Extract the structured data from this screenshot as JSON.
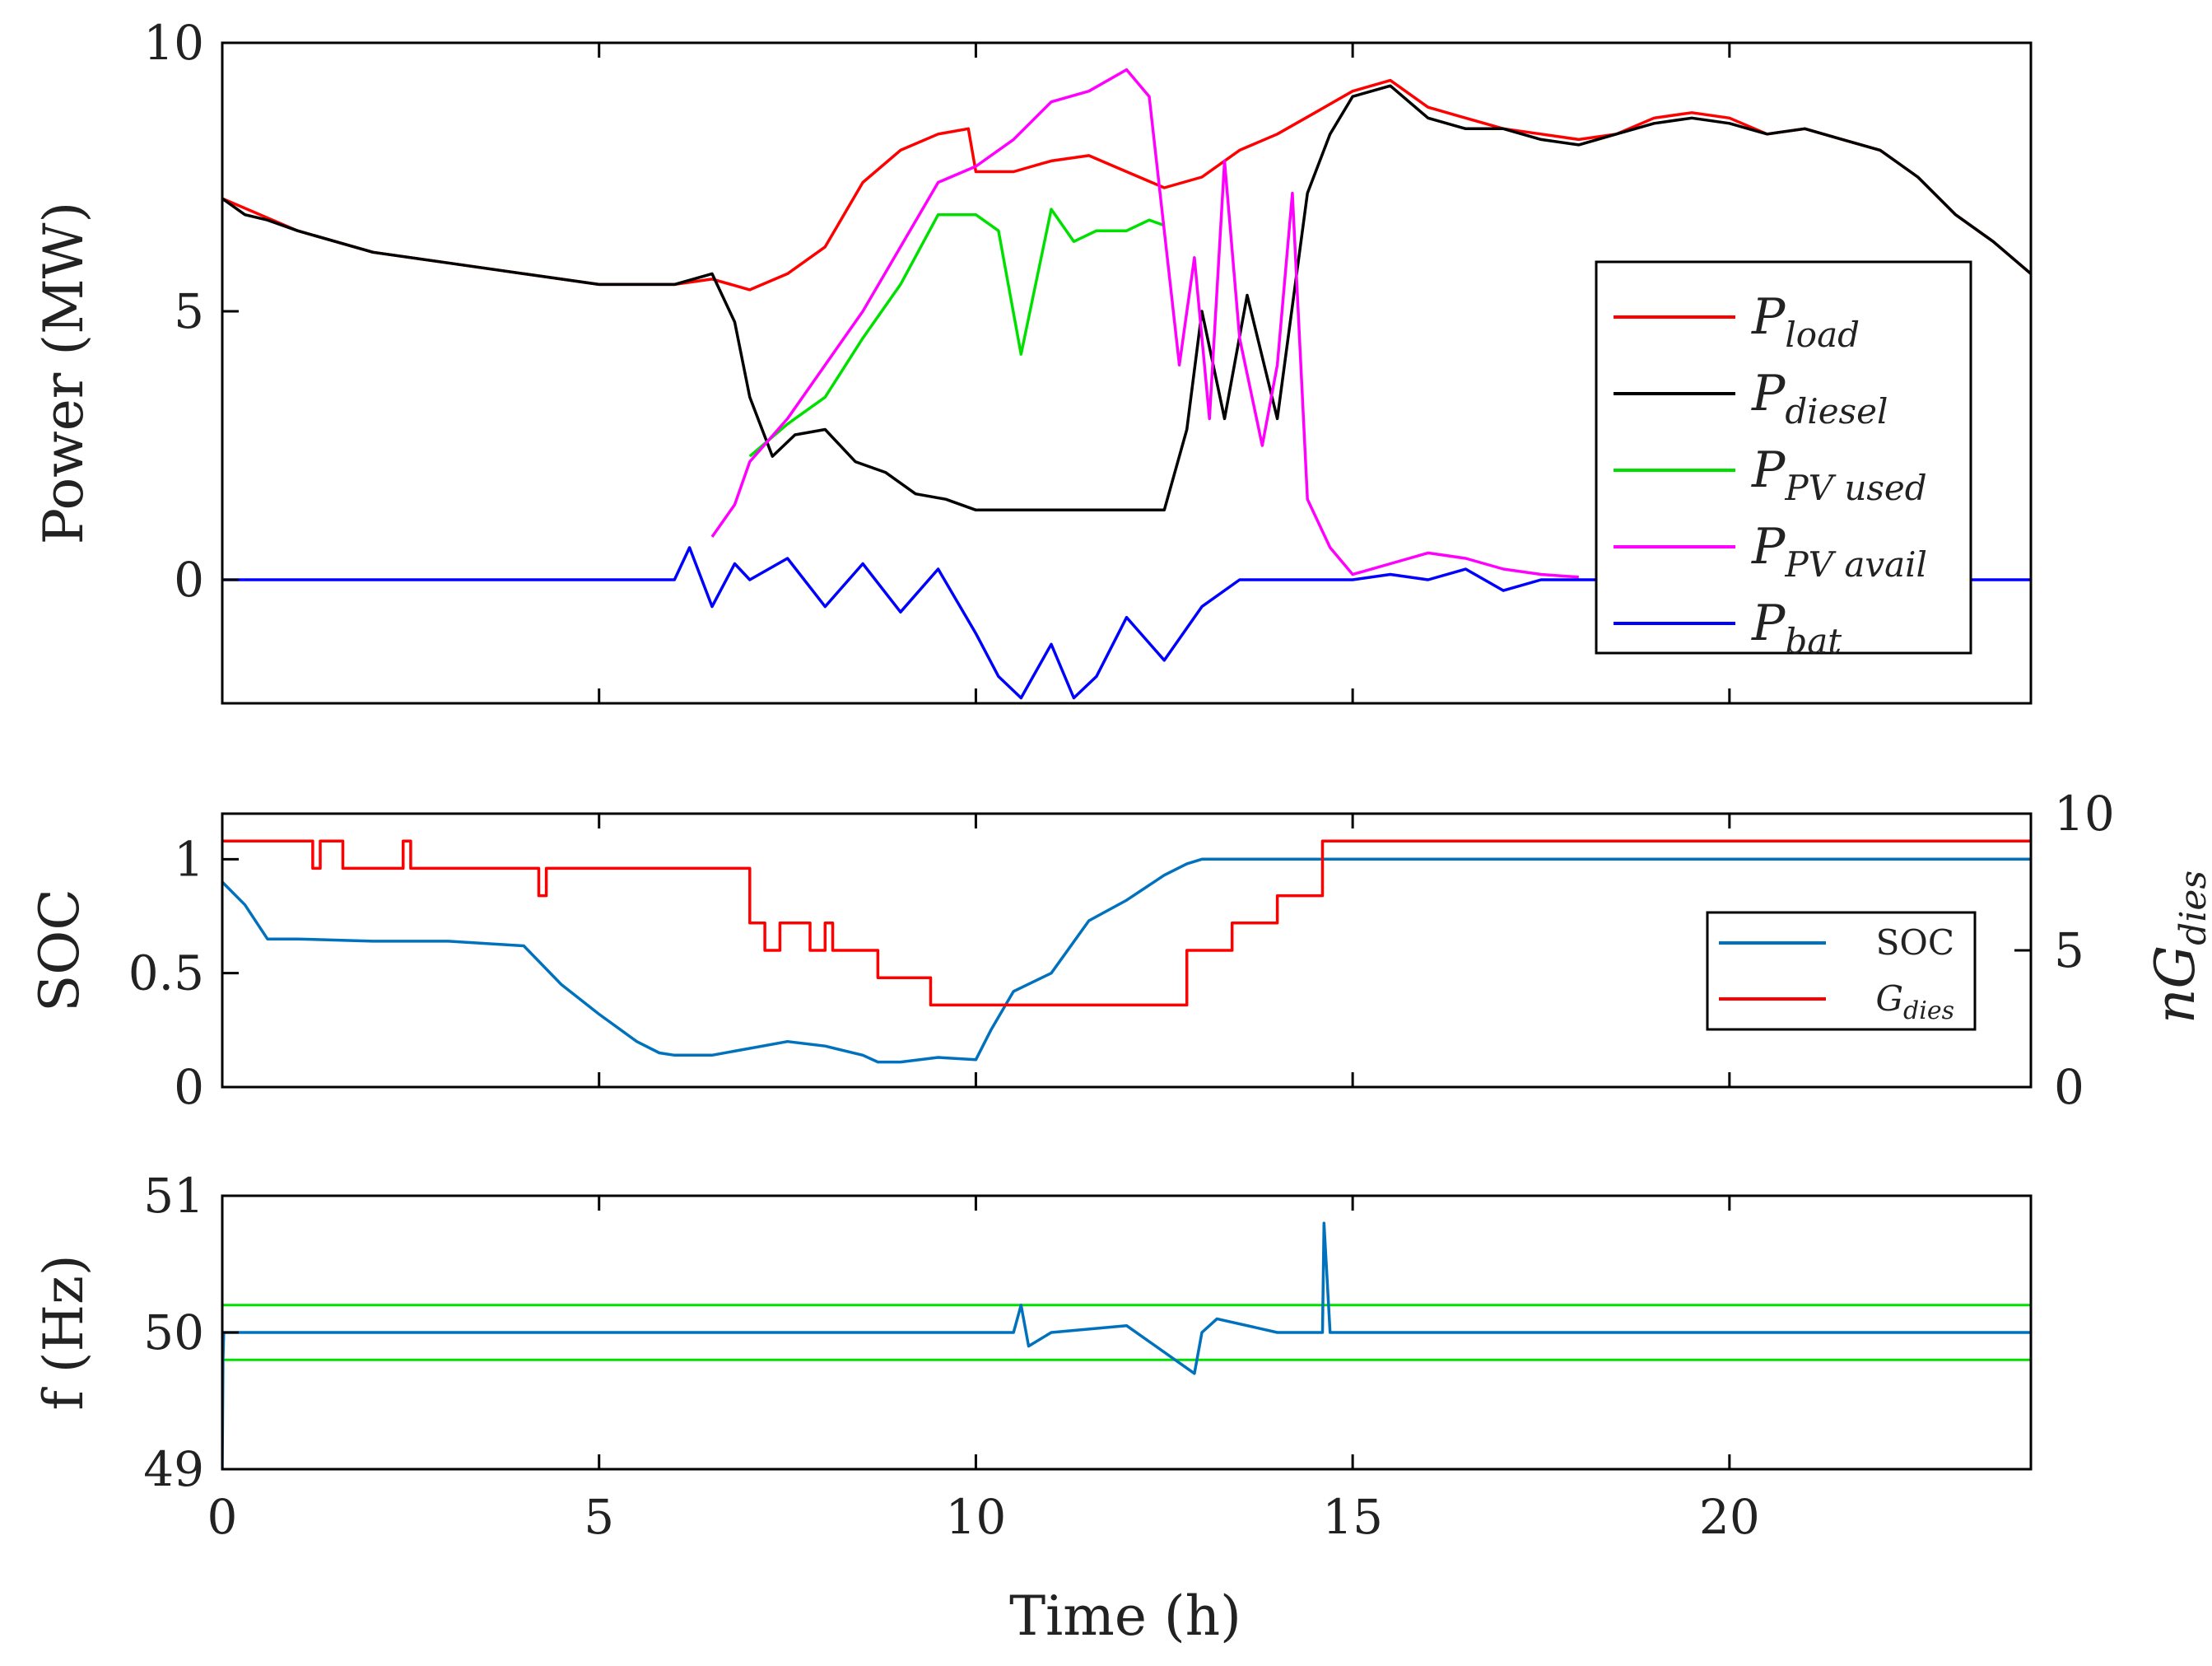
{
  "chart_data": [
    {
      "type": "line",
      "ylabel": "Power (MW)",
      "xlim": [
        0,
        24
      ],
      "ylim": [
        -2.3,
        10
      ],
      "yticks": [
        "0",
        "5",
        "10"
      ],
      "legend": {
        "placement": "right",
        "entries": [
          {
            "sym": "P",
            "sub": "load",
            "color": "#ff0000"
          },
          {
            "sym": "P",
            "sub": "diesel",
            "color": "#000000"
          },
          {
            "sym": "P",
            "sub": "PV used",
            "color": "#00e000"
          },
          {
            "sym": "P",
            "sub": "PV avail",
            "color": "#ff00ff"
          },
          {
            "sym": "P",
            "sub": "bat",
            "color": "#0000ff"
          }
        ]
      },
      "series": [
        {
          "name": "P_load",
          "color": "#ff0000",
          "x": [
            0,
            1,
            2,
            3,
            4,
            5,
            6,
            6.5,
            7,
            7.5,
            8,
            8.5,
            9,
            9.5,
            9.9,
            10,
            10.5,
            11,
            11.5,
            12,
            12.5,
            13,
            13.5,
            14,
            14.5,
            15,
            15.5,
            16,
            16.5,
            17,
            17.5,
            18,
            18.5,
            19,
            19.5,
            20,
            20.5,
            21,
            21.5,
            22,
            22.5,
            23,
            23.5,
            24
          ],
          "values": [
            7.1,
            6.5,
            6.1,
            5.9,
            5.7,
            5.5,
            5.5,
            5.6,
            5.4,
            5.7,
            6.2,
            7.4,
            8.0,
            8.3,
            8.4,
            7.6,
            7.6,
            7.8,
            7.9,
            7.6,
            7.3,
            7.5,
            8.0,
            8.3,
            8.7,
            9.1,
            9.3,
            8.8,
            8.6,
            8.4,
            8.3,
            8.2,
            8.3,
            8.6,
            8.7,
            8.6,
            8.3,
            8.4,
            8.2,
            8.0,
            7.5,
            6.8,
            6.3,
            5.7
          ]
        },
        {
          "name": "P_diesel",
          "color": "#000000",
          "x": [
            0,
            0.3,
            0.6,
            1,
            2,
            3,
            4,
            5,
            6,
            6.5,
            6.8,
            7.0,
            7.3,
            7.6,
            8.0,
            8.4,
            8.8,
            9.2,
            9.6,
            10,
            10.5,
            11,
            11.5,
            12,
            12.5,
            12.8,
            13.0,
            13.3,
            13.6,
            14.0,
            14.4,
            14.7,
            15,
            15.5,
            16,
            16.5,
            17,
            17.5,
            18,
            18.5,
            19,
            19.5,
            20,
            20.5,
            21,
            21.5,
            22,
            22.5,
            23,
            23.5,
            24
          ],
          "values": [
            7.1,
            6.8,
            6.7,
            6.5,
            6.1,
            5.9,
            5.7,
            5.5,
            5.5,
            5.7,
            4.8,
            3.4,
            2.3,
            2.7,
            2.8,
            2.2,
            2.0,
            1.6,
            1.5,
            1.3,
            1.3,
            1.3,
            1.3,
            1.3,
            1.3,
            2.8,
            5.0,
            3.0,
            5.3,
            3.0,
            7.2,
            8.3,
            9.0,
            9.2,
            8.6,
            8.4,
            8.4,
            8.2,
            8.1,
            8.3,
            8.5,
            8.6,
            8.5,
            8.3,
            8.4,
            8.2,
            8.0,
            7.5,
            6.8,
            6.3,
            5.7
          ]
        },
        {
          "name": "P_PV_used",
          "color": "#00e000",
          "x": [
            7.0,
            7.5,
            8.0,
            8.5,
            9.0,
            9.5,
            10,
            10.3,
            10.6,
            11,
            11.3,
            11.6,
            12,
            12.3,
            12.5
          ],
          "values": [
            2.3,
            2.9,
            3.4,
            4.5,
            5.5,
            6.8,
            6.8,
            6.5,
            4.2,
            6.9,
            6.3,
            6.5,
            6.5,
            6.7,
            6.6
          ]
        },
        {
          "name": "P_PV_avail",
          "color": "#ff00ff",
          "x": [
            6.5,
            6.8,
            7.0,
            7.5,
            8.0,
            8.5,
            9.0,
            9.5,
            10,
            10.5,
            11,
            11.5,
            12,
            12.3,
            12.5,
            12.7,
            12.9,
            13.1,
            13.3,
            13.5,
            13.8,
            14.0,
            14.2,
            14.4,
            14.7,
            15,
            15.5,
            16,
            16.5,
            17,
            17.5,
            18
          ],
          "values": [
            0.8,
            1.4,
            2.2,
            3.0,
            4.0,
            5.0,
            6.2,
            7.4,
            7.7,
            8.2,
            8.9,
            9.1,
            9.5,
            9.0,
            6.5,
            4.0,
            6.0,
            3.0,
            7.8,
            4.5,
            2.5,
            4.0,
            7.2,
            1.5,
            0.6,
            0.1,
            0.3,
            0.5,
            0.4,
            0.2,
            0.1,
            0.05
          ]
        },
        {
          "name": "P_bat",
          "color": "#0000ff",
          "x": [
            0,
            0.5,
            1,
            2,
            3,
            4,
            5,
            6,
            6.2,
            6.5,
            6.8,
            7,
            7.5,
            8,
            8.5,
            9,
            9.5,
            10,
            10.3,
            10.6,
            11,
            11.3,
            11.6,
            12,
            12.5,
            13,
            13.5,
            14,
            14.5,
            15,
            15.5,
            16,
            16.5,
            17,
            17.5,
            18,
            19,
            20,
            21,
            22,
            23,
            24
          ],
          "values": [
            0,
            0,
            0,
            0,
            0,
            0,
            0,
            0,
            0.6,
            -0.5,
            0.3,
            0,
            0.4,
            -0.5,
            0.3,
            -0.6,
            0.2,
            -1.0,
            -1.8,
            -2.2,
            -1.2,
            -2.2,
            -1.8,
            -0.7,
            -1.5,
            -0.5,
            0,
            0,
            0,
            0,
            0.1,
            0,
            0.2,
            -0.2,
            0,
            0,
            0,
            0,
            0,
            0,
            0,
            0
          ]
        }
      ]
    },
    {
      "type": "line",
      "ylabel": "SOC",
      "ylabel_right": "nG_dies",
      "xlim": [
        0,
        24
      ],
      "ylim": [
        0,
        1.2
      ],
      "ylim_right": [
        0,
        10
      ],
      "yticks": [
        "0",
        "0.5",
        "1"
      ],
      "yticks_right": [
        "0",
        "5",
        "10"
      ],
      "legend": {
        "placement": "right",
        "entries": [
          {
            "label": "SOC",
            "color": "#0072bd"
          },
          {
            "sym": "G",
            "sub": "dies",
            "color": "#ff0000"
          }
        ]
      },
      "series": [
        {
          "name": "SOC",
          "axis": "left",
          "color": "#0072bd",
          "x": [
            0,
            0.3,
            0.6,
            1,
            2,
            3,
            4,
            4.5,
            5,
            5.5,
            5.8,
            6,
            6.5,
            7,
            7.5,
            8,
            8.5,
            8.7,
            9,
            9.5,
            10,
            10.2,
            10.5,
            11,
            11.5,
            12,
            12.5,
            12.8,
            13,
            13.5,
            14,
            14.5,
            15,
            20,
            24
          ],
          "values": [
            0.9,
            0.8,
            0.65,
            0.65,
            0.64,
            0.64,
            0.62,
            0.45,
            0.32,
            0.2,
            0.15,
            0.14,
            0.14,
            0.17,
            0.2,
            0.18,
            0.14,
            0.11,
            0.11,
            0.13,
            0.12,
            0.25,
            0.42,
            0.5,
            0.73,
            0.82,
            0.93,
            0.98,
            1.0,
            1.0,
            1.0,
            1.0,
            1.0,
            1.0,
            1.0
          ]
        },
        {
          "name": "G_dies",
          "axis": "right",
          "color": "#ff0000",
          "x": [
            0,
            1.2,
            1.2,
            1.3,
            1.3,
            1.6,
            1.6,
            2.4,
            2.4,
            2.5,
            2.5,
            4.2,
            4.2,
            4.3,
            4.3,
            7.0,
            7.0,
            7.2,
            7.2,
            7.4,
            7.4,
            7.8,
            7.8,
            8.0,
            8.0,
            8.1,
            8.1,
            8.7,
            8.7,
            9.4,
            9.4,
            10.6,
            10.6,
            12.8,
            12.8,
            13.4,
            13.4,
            14.0,
            14.0,
            14.6,
            14.6,
            24
          ],
          "values": [
            9,
            9,
            8,
            8,
            9,
            9,
            8,
            8,
            9,
            9,
            8,
            8,
            7,
            7,
            8,
            8,
            6,
            6,
            5,
            5,
            6,
            6,
            5,
            5,
            6,
            6,
            5,
            5,
            4,
            4,
            3,
            3,
            3,
            3,
            5,
            5,
            6,
            6,
            7,
            7,
            9,
            9
          ]
        }
      ]
    },
    {
      "type": "line",
      "ylabel": "f (Hz)",
      "xlabel": "Time (h)",
      "xlim": [
        0,
        24
      ],
      "ylim": [
        49,
        51
      ],
      "yticks": [
        "49",
        "50",
        "51"
      ],
      "xticks": [
        "0",
        "5",
        "10",
        "15",
        "20"
      ],
      "reference_lines": [
        50.2,
        49.8
      ],
      "reference_color": "#00e000",
      "series": [
        {
          "name": "f",
          "color": "#0072bd",
          "x": [
            0,
            0.01,
            0.02,
            0.5,
            4,
            6,
            7,
            9,
            10,
            10.5,
            10.6,
            10.7,
            11,
            12,
            12.9,
            13,
            13.2,
            14,
            14.6,
            14.62,
            14.7,
            16,
            18,
            20,
            22,
            24
          ],
          "values": [
            49.0,
            49.8,
            50.0,
            50.0,
            50.0,
            50.0,
            50.0,
            50.0,
            50.0,
            50.0,
            50.2,
            49.9,
            50.0,
            50.05,
            49.7,
            50.0,
            50.1,
            50.0,
            50.0,
            50.8,
            50.0,
            50.0,
            50.0,
            50.0,
            50.0,
            50.0
          ]
        }
      ]
    }
  ]
}
